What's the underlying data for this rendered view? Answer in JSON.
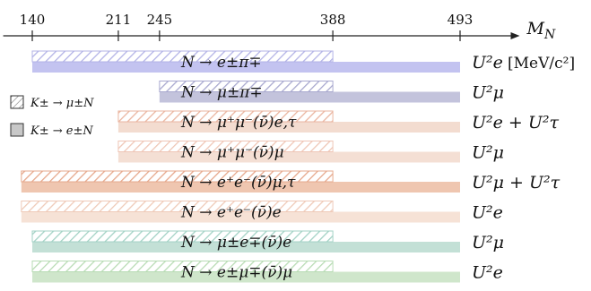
{
  "chart_data": {
    "type": "bar",
    "orientation": "horizontal",
    "axis": {
      "label": "M_N",
      "ticks": [
        140,
        211,
        245,
        388,
        493
      ],
      "range": [
        116,
        520
      ]
    },
    "legend": {
      "placement": "left",
      "entries": [
        {
          "name": "K± → μ±N",
          "style": "hatched",
          "color": "#e8e8e8"
        },
        {
          "name": "K± → e±N",
          "style": "solid",
          "color": "#c8c8c8"
        }
      ]
    },
    "unit": "[MeV/c²]",
    "rows": [
      {
        "decay": "N → e±π∓",
        "coupling": "U²e",
        "hatched": [
          140,
          388
        ],
        "solid": [
          140,
          493
        ],
        "hatch_color": "#b3b3e6",
        "solid_color": "#c3c3f0"
      },
      {
        "decay": "N → μ±π∓",
        "coupling": "U²μ",
        "hatched": [
          245,
          388
        ],
        "solid": [
          245,
          493
        ],
        "hatch_color": "#a9a9cf",
        "solid_color": "#c3c3dc"
      },
      {
        "decay": "N → μ⁺μ⁻(ν̄)e,τ",
        "coupling": "U²e + U²τ",
        "hatched": [
          211,
          388
        ],
        "solid": [
          211,
          493
        ],
        "hatch_color": "#eab5a0",
        "solid_color": "#f3dcd0"
      },
      {
        "decay": "N → μ⁺μ⁻(ν̄)μ",
        "coupling": "U²μ",
        "hatched": [
          211,
          388
        ],
        "solid": [
          211,
          493
        ],
        "hatch_color": "#efc6b6",
        "solid_color": "#f4dfd4"
      },
      {
        "decay": "N → e⁺e⁻(ν̄)μ,τ",
        "coupling": "U²μ + U²τ",
        "hatched": [
          131,
          388
        ],
        "solid": [
          131,
          493
        ],
        "hatch_color": "#e6a88c",
        "solid_color": "#efc6b0"
      },
      {
        "decay": "N → e⁺e⁻(ν̄)e",
        "coupling": "U²e",
        "hatched": [
          131,
          388
        ],
        "solid": [
          131,
          493
        ],
        "hatch_color": "#efcab8",
        "solid_color": "#f6e2d6"
      },
      {
        "decay": "N → μ±e∓(ν̄)e",
        "coupling": "U²μ",
        "hatched": [
          140,
          388
        ],
        "solid": [
          140,
          493
        ],
        "hatch_color": "#a3d2c5",
        "solid_color": "#c3e0d6"
      },
      {
        "decay": "N → e±μ∓(ν̄)μ",
        "coupling": "U²e",
        "hatched": [
          140,
          388
        ],
        "solid": [
          140,
          493
        ],
        "hatch_color": "#b9dcb5",
        "solid_color": "#cfe6cb"
      }
    ]
  }
}
